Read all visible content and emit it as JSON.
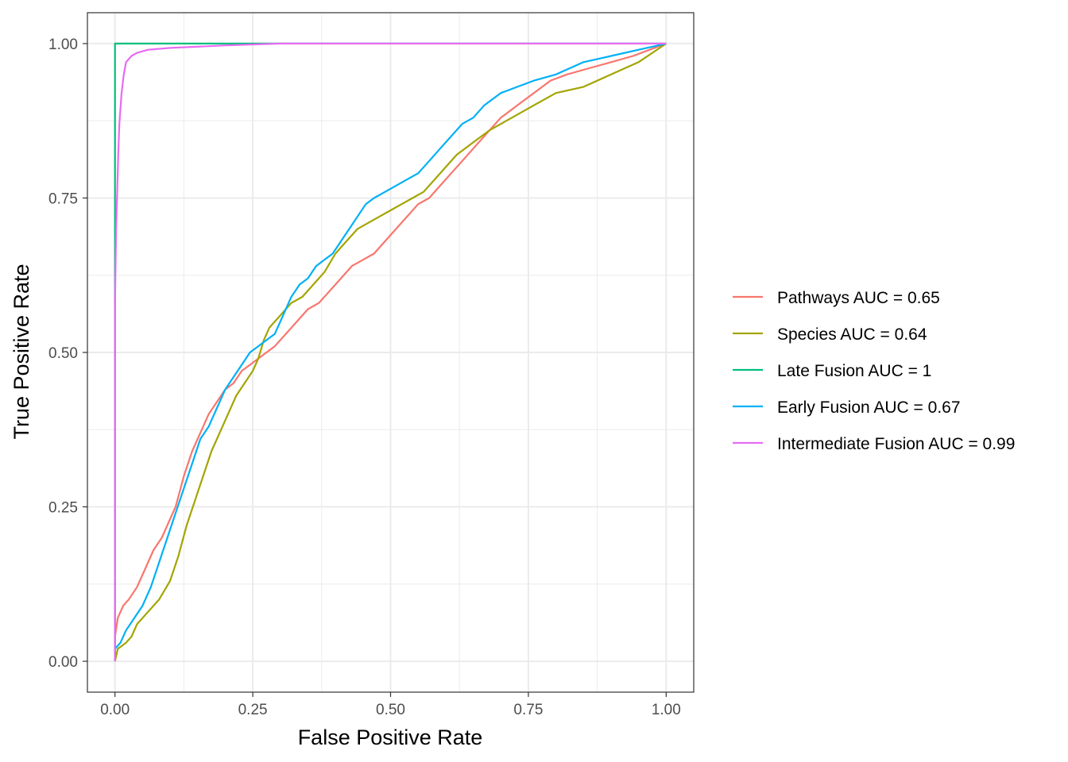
{
  "chart_data": {
    "type": "line",
    "title": "",
    "xlabel": "False Positive Rate",
    "ylabel": "True Positive Rate",
    "xlim": [
      -0.05,
      1.05
    ],
    "ylim": [
      -0.05,
      1.05
    ],
    "xticks": [
      0,
      0.25,
      0.5,
      0.75,
      1
    ],
    "xtick_labels": [
      "0.00",
      "0.25",
      "0.50",
      "0.75",
      "1.00"
    ],
    "yticks": [
      0,
      0.25,
      0.5,
      0.75,
      1
    ],
    "ytick_labels": [
      "0.00",
      "0.25",
      "0.50",
      "0.75",
      "1.00"
    ],
    "grid": true,
    "legend_position": "right",
    "series": [
      {
        "name": "Pathways AUC = 0.65",
        "color": "#F8766D",
        "x": [
          0,
          0,
          0.005,
          0.015,
          0.025,
          0.04,
          0.055,
          0.07,
          0.085,
          0.1,
          0.11,
          0.125,
          0.14,
          0.155,
          0.17,
          0.185,
          0.2,
          0.215,
          0.23,
          0.245,
          0.26,
          0.275,
          0.29,
          0.31,
          0.33,
          0.35,
          0.37,
          0.39,
          0.41,
          0.43,
          0.45,
          0.47,
          0.49,
          0.51,
          0.53,
          0.55,
          0.57,
          0.59,
          0.61,
          0.63,
          0.65,
          0.67,
          0.7,
          0.73,
          0.76,
          0.79,
          0.82,
          0.86,
          0.9,
          0.94,
          0.97,
          1.0
        ],
        "y": [
          0,
          0.04,
          0.07,
          0.09,
          0.1,
          0.12,
          0.15,
          0.18,
          0.2,
          0.23,
          0.25,
          0.3,
          0.34,
          0.37,
          0.4,
          0.42,
          0.44,
          0.45,
          0.47,
          0.48,
          0.49,
          0.5,
          0.51,
          0.53,
          0.55,
          0.57,
          0.58,
          0.6,
          0.62,
          0.64,
          0.65,
          0.66,
          0.68,
          0.7,
          0.72,
          0.74,
          0.75,
          0.77,
          0.79,
          0.81,
          0.83,
          0.85,
          0.88,
          0.9,
          0.92,
          0.94,
          0.95,
          0.96,
          0.97,
          0.98,
          0.99,
          1.0
        ]
      },
      {
        "name": "Species AUC = 0.64",
        "color": "#A3A500",
        "x": [
          0,
          0.005,
          0.02,
          0.03,
          0.04,
          0.06,
          0.08,
          0.1,
          0.115,
          0.13,
          0.145,
          0.16,
          0.175,
          0.19,
          0.205,
          0.22,
          0.235,
          0.25,
          0.26,
          0.27,
          0.28,
          0.3,
          0.32,
          0.34,
          0.36,
          0.38,
          0.4,
          0.42,
          0.44,
          0.46,
          0.48,
          0.5,
          0.52,
          0.54,
          0.56,
          0.58,
          0.6,
          0.62,
          0.65,
          0.68,
          0.72,
          0.76,
          0.8,
          0.85,
          0.9,
          0.95,
          1.0
        ],
        "y": [
          0,
          0.02,
          0.03,
          0.04,
          0.06,
          0.08,
          0.1,
          0.13,
          0.17,
          0.22,
          0.26,
          0.3,
          0.34,
          0.37,
          0.4,
          0.43,
          0.45,
          0.47,
          0.49,
          0.52,
          0.54,
          0.56,
          0.58,
          0.59,
          0.61,
          0.63,
          0.66,
          0.68,
          0.7,
          0.71,
          0.72,
          0.73,
          0.74,
          0.75,
          0.76,
          0.78,
          0.8,
          0.82,
          0.84,
          0.86,
          0.88,
          0.9,
          0.92,
          0.93,
          0.95,
          0.97,
          1.0
        ]
      },
      {
        "name": "Late Fusion AUC = 1",
        "color": "#00BF7D",
        "x": [
          0,
          0,
          0,
          1.0
        ],
        "y": [
          0,
          0.7,
          1.0,
          1.0
        ]
      },
      {
        "name": "Early Fusion AUC = 0.67",
        "color": "#00B0F6",
        "x": [
          0,
          0.01,
          0.02,
          0.035,
          0.05,
          0.065,
          0.08,
          0.095,
          0.11,
          0.125,
          0.14,
          0.155,
          0.17,
          0.185,
          0.2,
          0.215,
          0.23,
          0.245,
          0.26,
          0.275,
          0.29,
          0.3,
          0.31,
          0.32,
          0.335,
          0.35,
          0.365,
          0.38,
          0.395,
          0.41,
          0.425,
          0.44,
          0.455,
          0.47,
          0.49,
          0.51,
          0.53,
          0.55,
          0.57,
          0.59,
          0.61,
          0.63,
          0.65,
          0.67,
          0.7,
          0.73,
          0.76,
          0.8,
          0.85,
          0.9,
          0.95,
          1.0
        ],
        "y": [
          0.02,
          0.03,
          0.05,
          0.07,
          0.09,
          0.12,
          0.16,
          0.2,
          0.24,
          0.28,
          0.32,
          0.36,
          0.38,
          0.41,
          0.44,
          0.46,
          0.48,
          0.5,
          0.51,
          0.52,
          0.53,
          0.55,
          0.57,
          0.59,
          0.61,
          0.62,
          0.64,
          0.65,
          0.66,
          0.68,
          0.7,
          0.72,
          0.74,
          0.75,
          0.76,
          0.77,
          0.78,
          0.79,
          0.81,
          0.83,
          0.85,
          0.87,
          0.88,
          0.9,
          0.92,
          0.93,
          0.94,
          0.95,
          0.97,
          0.98,
          0.99,
          1.0
        ]
      },
      {
        "name": "Intermediate Fusion AUC = 0.99",
        "color": "#E76BF3",
        "x": [
          0,
          0,
          0.002,
          0.004,
          0.006,
          0.008,
          0.012,
          0.016,
          0.02,
          0.03,
          0.04,
          0.06,
          0.1,
          0.2,
          0.3,
          0.5,
          1.0
        ],
        "y": [
          0,
          0.58,
          0.7,
          0.76,
          0.82,
          0.87,
          0.92,
          0.95,
          0.97,
          0.98,
          0.985,
          0.99,
          0.993,
          0.997,
          1.0,
          1.0,
          1.0
        ]
      }
    ]
  }
}
